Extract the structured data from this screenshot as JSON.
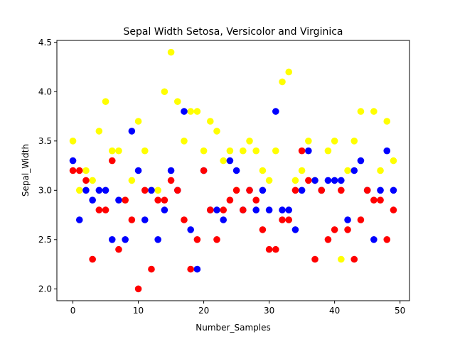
{
  "chart_data": {
    "type": "scatter",
    "title": "Sepal Width Setosa, Versicolor and Virginica",
    "xlabel": "Number_Samples",
    "ylabel": "Sepal_Width",
    "xlim": [
      -2.45,
      51.45
    ],
    "ylim": [
      1.88,
      4.52
    ],
    "xticks": [
      0,
      10,
      20,
      30,
      40,
      50
    ],
    "yticks": [
      2.0,
      2.5,
      3.0,
      3.5,
      4.0,
      4.5
    ],
    "xtick_labels": [
      "0",
      "10",
      "20",
      "30",
      "40",
      "50"
    ],
    "ytick_labels": [
      "2.0",
      "2.5",
      "3.0",
      "3.5",
      "4.0",
      "4.5"
    ],
    "grid": false,
    "legend": "none",
    "series": [
      {
        "color": "#ffff00",
        "x": [
          0,
          1,
          2,
          3,
          4,
          5,
          6,
          7,
          8,
          9,
          10,
          11,
          12,
          13,
          14,
          15,
          16,
          17,
          18,
          19,
          20,
          21,
          22,
          23,
          24,
          25,
          26,
          27,
          28,
          29,
          30,
          31,
          32,
          33,
          34,
          35,
          36,
          37,
          38,
          39,
          40,
          41,
          42,
          43,
          44,
          45,
          46,
          47,
          48,
          49
        ],
        "values": [
          3.5,
          3.0,
          3.2,
          3.1,
          3.6,
          3.9,
          3.4,
          3.4,
          2.9,
          3.1,
          3.7,
          3.4,
          3.0,
          3.0,
          4.0,
          4.4,
          3.9,
          3.5,
          3.8,
          3.8,
          3.4,
          3.7,
          3.6,
          3.3,
          3.4,
          3.0,
          3.4,
          3.5,
          3.4,
          3.2,
          3.1,
          3.4,
          4.1,
          4.2,
          3.1,
          3.2,
          3.5,
          3.1,
          3.0,
          3.4,
          3.5,
          2.3,
          3.2,
          3.5,
          3.8,
          3.0,
          3.8,
          3.2,
          3.7,
          3.3
        ]
      },
      {
        "color": "#0000ff",
        "x": [
          0,
          1,
          2,
          3,
          4,
          5,
          6,
          7,
          8,
          9,
          10,
          11,
          12,
          13,
          14,
          15,
          16,
          17,
          18,
          19,
          20,
          21,
          22,
          23,
          24,
          25,
          26,
          27,
          28,
          29,
          30,
          31,
          32,
          33,
          34,
          35,
          36,
          37,
          38,
          39,
          40,
          41,
          42,
          43,
          44,
          45,
          46,
          47,
          48,
          49
        ],
        "values": [
          3.3,
          2.7,
          3.0,
          2.9,
          3.0,
          3.0,
          2.5,
          2.9,
          2.5,
          3.6,
          3.2,
          2.7,
          3.0,
          2.5,
          2.8,
          3.2,
          3.0,
          3.8,
          2.6,
          2.2,
          3.2,
          2.8,
          2.8,
          2.7,
          3.3,
          3.2,
          2.8,
          3.0,
          2.8,
          3.0,
          2.8,
          3.8,
          2.8,
          2.8,
          2.6,
          3.0,
          3.4,
          3.1,
          3.0,
          3.1,
          3.1,
          3.1,
          2.7,
          3.2,
          3.3,
          3.0,
          2.5,
          3.0,
          3.4,
          3.0
        ]
      },
      {
        "color": "#ff0000",
        "x": [
          0,
          1,
          2,
          3,
          4,
          5,
          6,
          7,
          8,
          9,
          10,
          11,
          12,
          13,
          14,
          15,
          16,
          17,
          18,
          19,
          20,
          21,
          22,
          23,
          24,
          25,
          26,
          27,
          28,
          29,
          30,
          31,
          32,
          33,
          34,
          35,
          36,
          37,
          38,
          39,
          40,
          41,
          42,
          43,
          44,
          45,
          46,
          47,
          48,
          49
        ],
        "values": [
          3.2,
          3.2,
          3.1,
          2.3,
          2.8,
          2.8,
          3.3,
          2.4,
          2.9,
          2.7,
          2.0,
          3.0,
          2.2,
          2.9,
          2.9,
          3.1,
          3.0,
          2.7,
          2.2,
          2.5,
          3.2,
          2.8,
          2.5,
          2.8,
          2.9,
          3.0,
          2.8,
          3.0,
          2.9,
          2.6,
          2.4,
          2.4,
          2.7,
          2.7,
          3.0,
          3.4,
          3.1,
          2.3,
          3.0,
          2.5,
          2.6,
          3.0,
          2.6,
          2.3,
          2.7,
          3.0,
          2.9,
          2.9,
          2.5,
          2.8
        ]
      }
    ]
  }
}
